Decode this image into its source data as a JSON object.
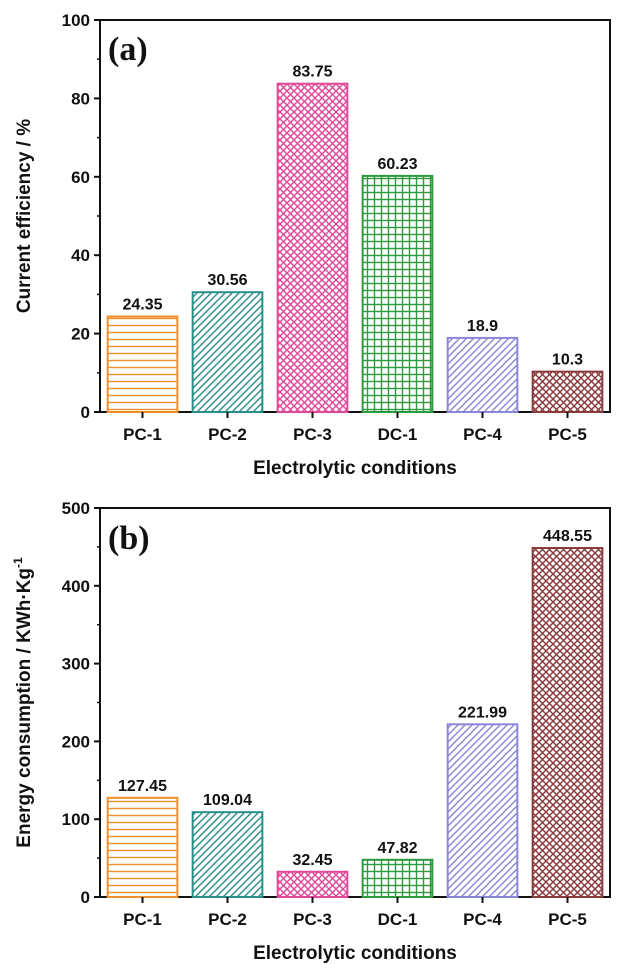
{
  "chart_data": [
    {
      "type": "bar",
      "panel_label": "(a)",
      "categories": [
        "PC-1",
        "PC-2",
        "PC-3",
        "DC-1",
        "PC-4",
        "PC-5"
      ],
      "values": [
        24.35,
        30.56,
        83.75,
        60.23,
        18.9,
        10.3
      ],
      "value_labels": [
        "24.35",
        "30.56",
        "83.75",
        "60.23",
        "18.9",
        "10.3"
      ],
      "xlabel": "Electrolytic conditions",
      "ylabel": "Current efficiency / %",
      "ylim": [
        0,
        100
      ],
      "yticks": [
        0,
        20,
        40,
        60,
        80,
        100
      ],
      "grid": false
    },
    {
      "type": "bar",
      "panel_label": "(b)",
      "categories": [
        "PC-1",
        "PC-2",
        "PC-3",
        "DC-1",
        "PC-4",
        "PC-5"
      ],
      "values": [
        127.45,
        109.04,
        32.45,
        47.82,
        221.99,
        448.55
      ],
      "value_labels": [
        "127.45",
        "109.04",
        "32.45",
        "47.82",
        "221.99",
        "448.55"
      ],
      "xlabel": "Electrolytic conditions",
      "ylabel": "Energy consumption / KWh·Kg",
      "ylabel_superscript": "-1",
      "ylim": [
        0,
        500
      ],
      "yticks": [
        0,
        100,
        200,
        300,
        400,
        500
      ],
      "grid": false
    }
  ],
  "bar_colors": [
    "#f0902a",
    "#2a8f8a",
    "#e0489a",
    "#2e9a3e",
    "#8a86d8",
    "#8a3a3a"
  ],
  "bar_patterns": [
    "horizontal-lines",
    "diagonal-lines",
    "crosshatch",
    "grid",
    "diagonal-lines",
    "crosshatch"
  ]
}
